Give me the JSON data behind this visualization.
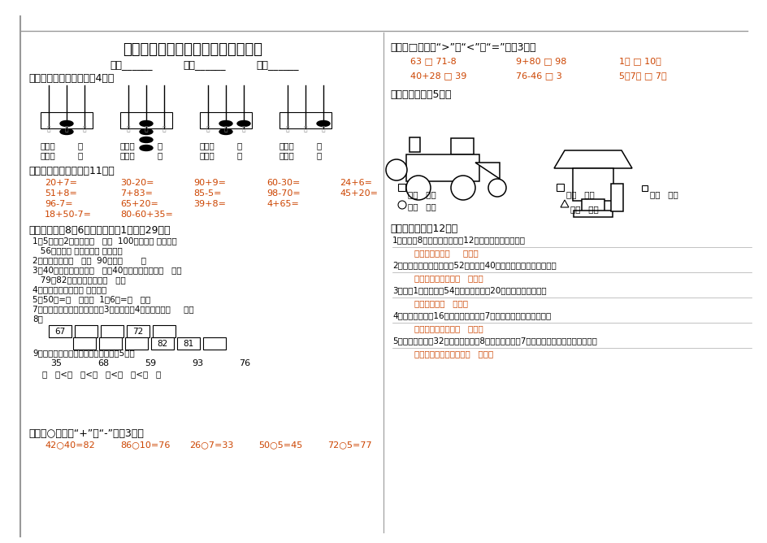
{
  "title": "小学数学一年级下册期末综合测试卷",
  "bg_color": "#ffffff",
  "text_color": "#000000",
  "accent_color": "#cc4400",
  "section1_title": "一、看图写数和读数。（4分）",
  "section2_title": "二、直接写出得数。（11分）",
  "section2_rows": [
    [
      "20+7=",
      "30-20=",
      "90+9=",
      "60-30=",
      "24+6="
    ],
    [
      "51+8=",
      "7+83=",
      "85-5=",
      "98-70=",
      "45+20="
    ],
    [
      "96-7=",
      "65+20=",
      "39+8=",
      "4+65=",
      ""
    ],
    [
      "18+50-7=",
      "80-60+35=",
      "",
      "",
      ""
    ]
  ],
  "section3_title": "三、填空（第8题6分，其它等祱1分，共29分）",
  "section3_items": [
    "1、5个一和2个十组成（   ），  100里面有（ ）个一，",
    "   56里面有（ ）个十和（ ）个一。",
    "2、七十六写作（   ），  90读作（       ）",
    "3、40前面的一个数是（   ），40后面的一个数是（   ），",
    "   79和82中间的一个数是（   ）。",
    "4、读数和写数都从（ ）位起。",
    "5、50角=（   ）元，  1元6角=（   ）角",
    "7、一个数，从左边起第一位是3，第二位是4，这个数是（     ）。"
  ],
  "section4_title": "四、在○里填上“+”或“-”。（3分）",
  "section4_items": [
    "42○40=82",
    "86○10=76",
    "26○7=33",
    "50○5=45",
    "72○5=77"
  ],
  "section5_title": "五、在□里填上“>”、“<”或“=”。（3分）",
  "section5_row1": [
    "63 □ 71-8",
    "9+80 □ 98",
    "1元 □ 10角"
  ],
  "section5_row2": [
    "40+28 □ 39",
    "76-46 □ 3",
    "5元7角 □ 7元"
  ],
  "section6_title": "六、数一数。（5分）",
  "section7_title": "七、应用题。（12分）",
  "section7_items": [
    "1、兰兰有8元錢，买一本面帤12元，兰兰还差多少錢？",
    "答：兰兰还差（     ）錢。",
    "2、学校举练运动队，男生52人，女生40人，女生比男生少多少人？",
    "答：女生比男生少（   ）人。",
    "3、二（1）班有学生54人，其中男生有20人，女生有多少人？",
    "答：女生有（   ）人。",
    "4、买一个文具盒16元，买一把铅笔列7元，两样都买需要多少錢？",
    "答：两样都买需要（   ）元。",
    "5、小明有图画䌧32本，第一次借出8本，第二次借出7本，小明的图画书少了多少本？",
    "答：小明的图画书少了（   ）本。"
  ]
}
